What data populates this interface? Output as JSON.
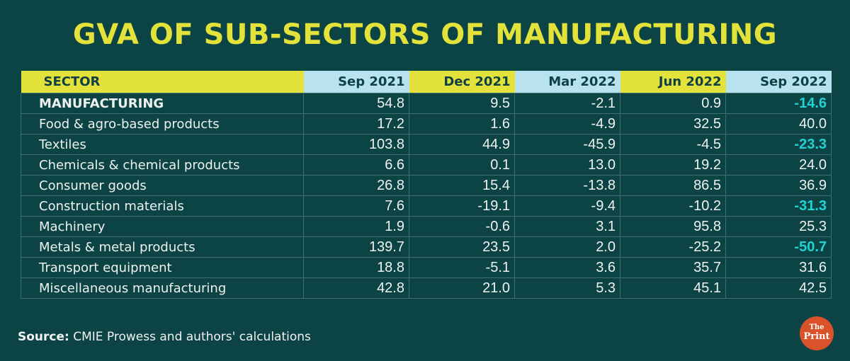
{
  "title": "GVA OF SUB-SECTORS OF MANUFACTURING",
  "source_label": "Source:",
  "source_text": "CMIE Prowess and authors' calculations",
  "logo": {
    "line1": "The",
    "line2": "Print"
  },
  "colors": {
    "background": "#0c4446",
    "title": "#e2e23a",
    "header_yellow": "#e2e23a",
    "header_blue": "#b8e2f0",
    "highlight_negative": "#22d3d3",
    "logo": "#d9522a"
  },
  "chart_data": {
    "type": "table",
    "title": "GVA OF SUB-SECTORS OF MANUFACTURING",
    "columns": [
      "SECTOR",
      "Sep 2021",
      "Dec 2021",
      "Mar 2022",
      "Jun 2022",
      "Sep 2022"
    ],
    "rows": [
      {
        "sector": "MANUFACTURING",
        "values": [
          "54.8",
          "9.5",
          "-2.1",
          "0.9",
          "-14.6"
        ],
        "highlight_last": true
      },
      {
        "sector": "Food & agro-based products",
        "values": [
          "17.2",
          "1.6",
          "-4.9",
          "32.5",
          "40.0"
        ],
        "highlight_last": false
      },
      {
        "sector": "Textiles",
        "values": [
          "103.8",
          "44.9",
          "-45.9",
          "-4.5",
          "-23.3"
        ],
        "highlight_last": true
      },
      {
        "sector": "Chemicals & chemical products",
        "values": [
          "6.6",
          "0.1",
          "13.0",
          "19.2",
          "24.0"
        ],
        "highlight_last": false
      },
      {
        "sector": "Consumer goods",
        "values": [
          "26.8",
          "15.4",
          "-13.8",
          "86.5",
          "36.9"
        ],
        "highlight_last": false
      },
      {
        "sector": "Construction materials",
        "values": [
          "7.6",
          "-19.1",
          "-9.4",
          "-10.2",
          "-31.3"
        ],
        "highlight_last": true
      },
      {
        "sector": "Machinery",
        "values": [
          "1.9",
          "-0.6",
          "3.1",
          "95.8",
          "25.3"
        ],
        "highlight_last": false
      },
      {
        "sector": "Metals & metal products",
        "values": [
          "139.7",
          "23.5",
          "2.0",
          "-25.2",
          "-50.7"
        ],
        "highlight_last": true
      },
      {
        "sector": "Transport equipment",
        "values": [
          "18.8",
          "-5.1",
          "3.6",
          "35.7",
          "31.6"
        ],
        "highlight_last": false
      },
      {
        "sector": "Miscellaneous manufacturing",
        "values": [
          "42.8",
          "21.0",
          "5.3",
          "45.1",
          "42.5"
        ],
        "highlight_last": false
      }
    ]
  }
}
